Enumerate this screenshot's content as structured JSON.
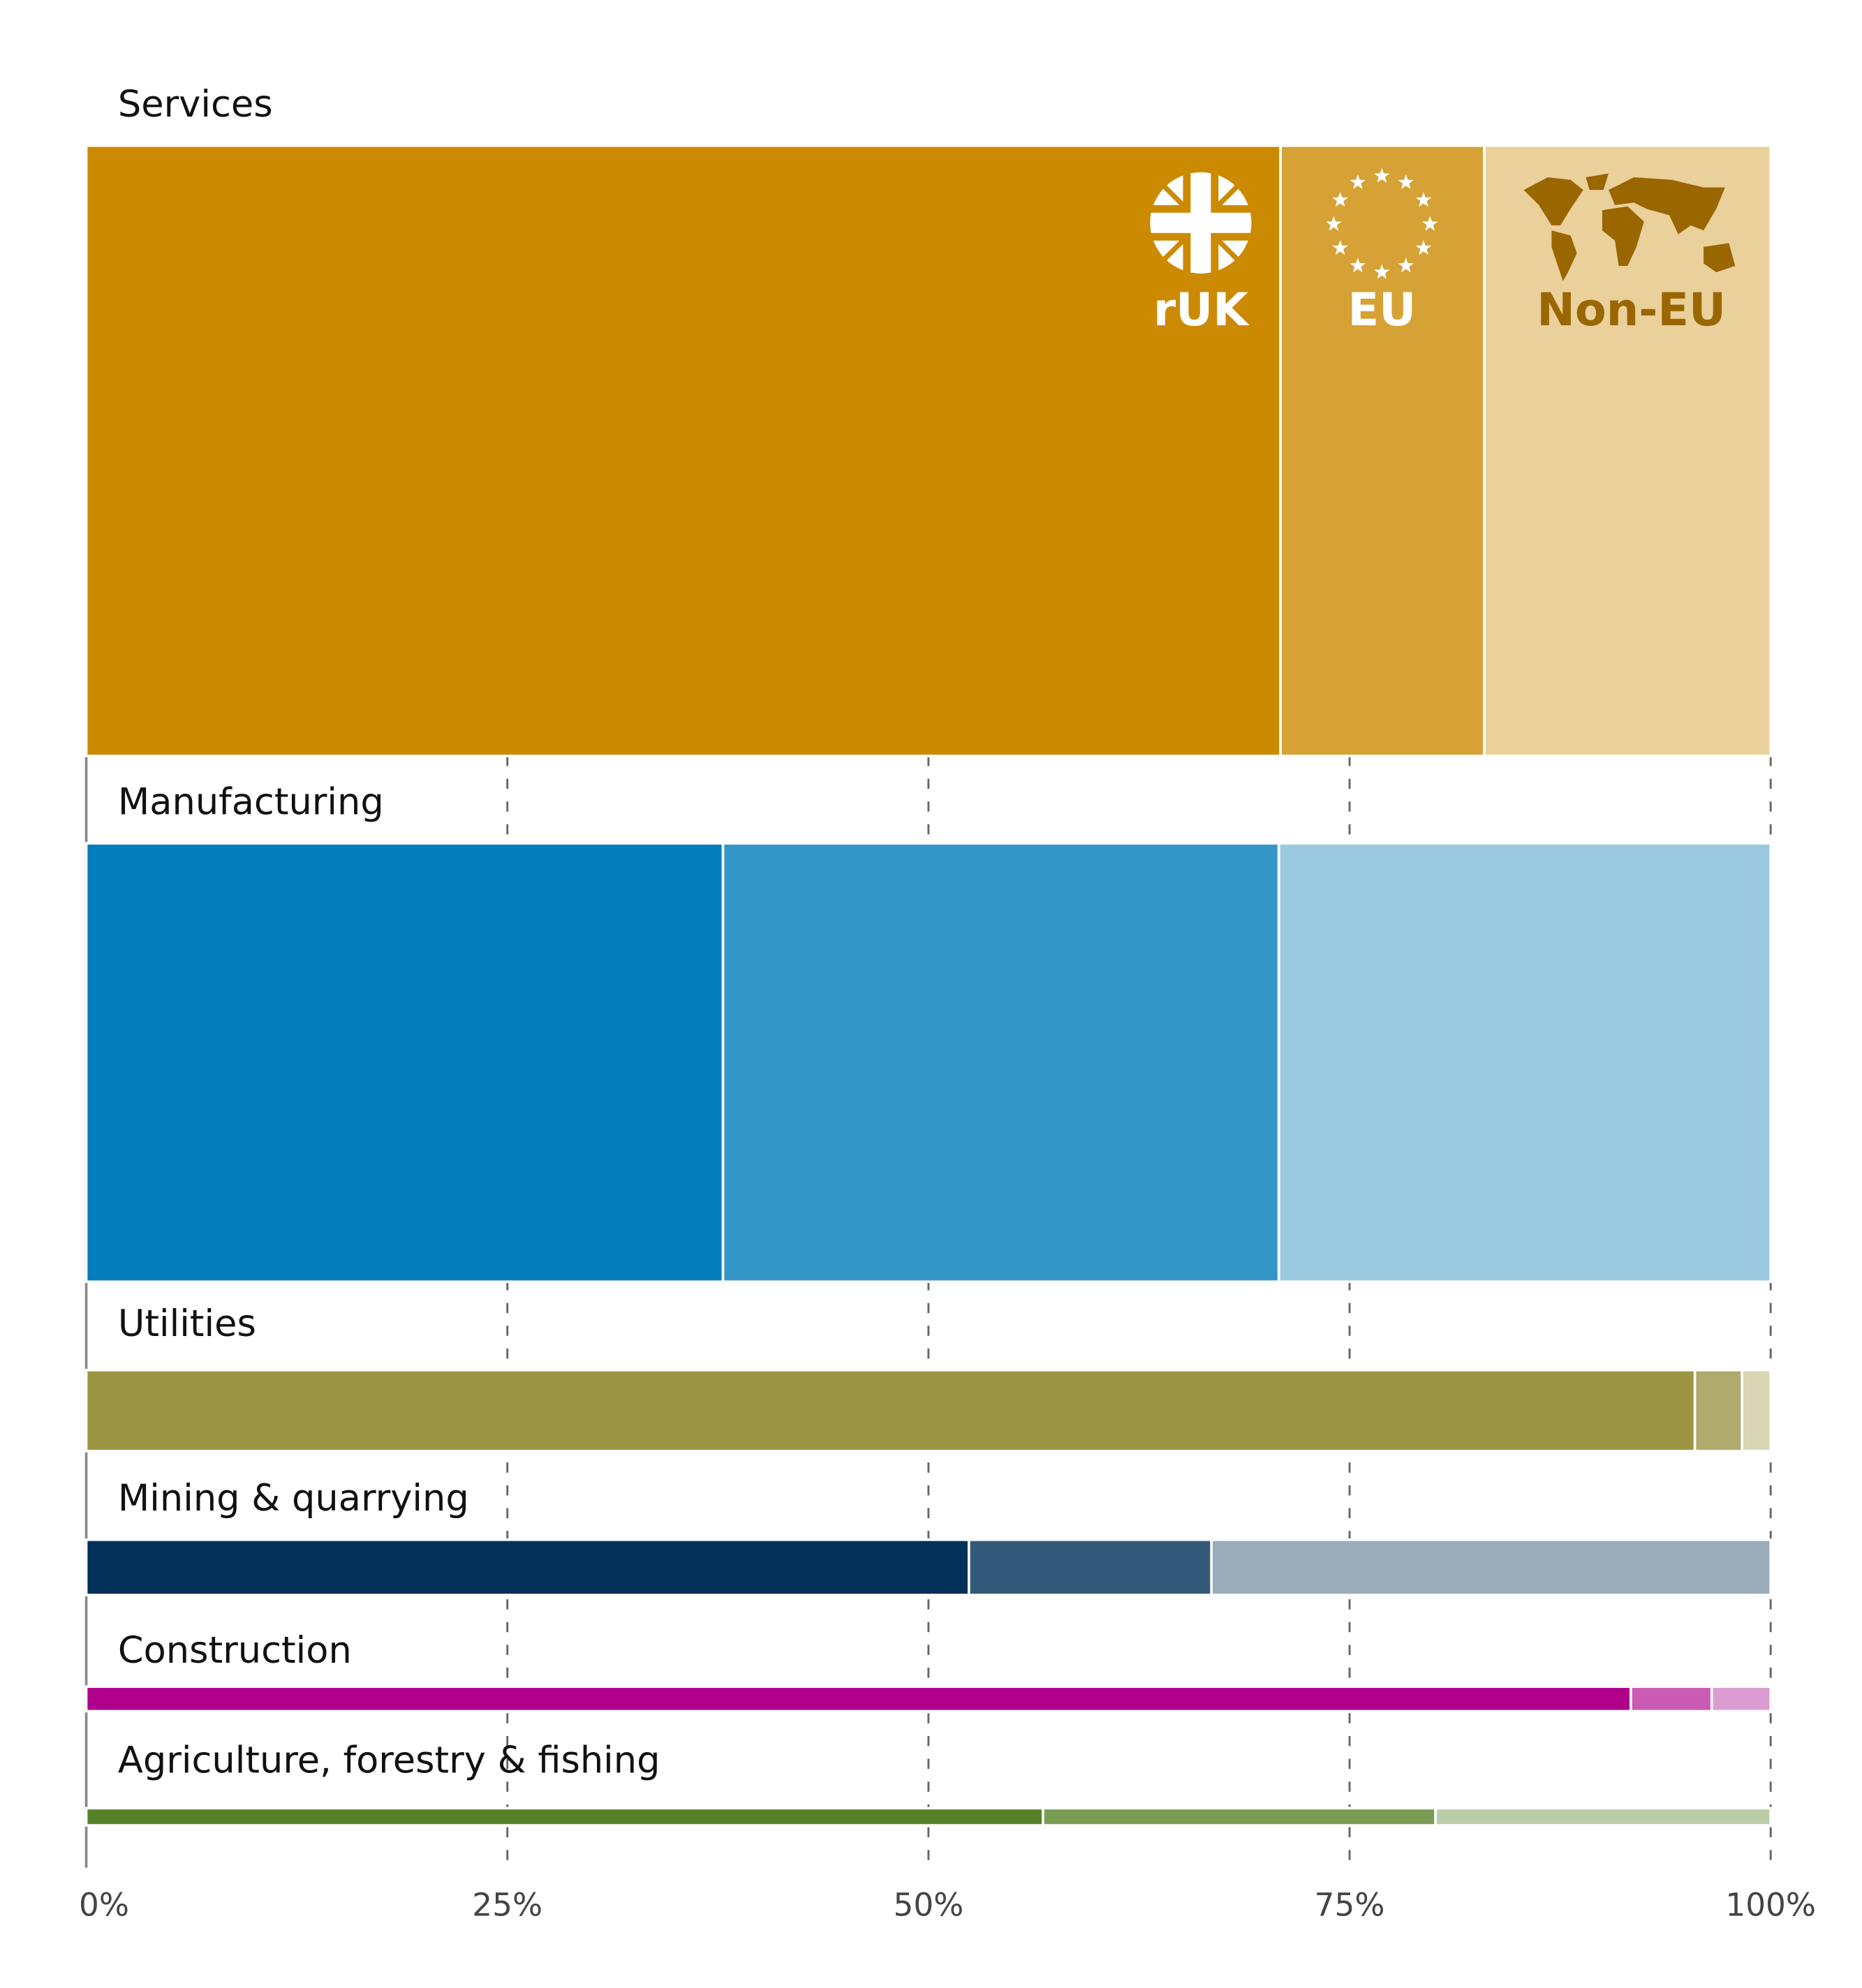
{
  "chart_data": {
    "type": "bar",
    "subtype": "marimekko-stacked-100-percent",
    "orientation": "horizontal",
    "segments": [
      {
        "name": "rUK",
        "icon": "union-jack-icon"
      },
      {
        "name": "EU",
        "icon": "eu-stars-icon"
      },
      {
        "name": "Non-EU",
        "icon": "world-map-icon"
      }
    ],
    "categories": [
      {
        "label": "Services",
        "relative_size": 49.7,
        "shares": [
          70.9,
          12.1,
          17.0
        ],
        "colors": [
          "#cc8a00",
          "#d6a235",
          "#ead09b"
        ]
      },
      {
        "label": "Manufacturing",
        "relative_size": 35.7,
        "shares": [
          37.8,
          33.0,
          29.2
        ],
        "colors": [
          "#037dbb",
          "#3597c8",
          "#9bcae0"
        ]
      },
      {
        "label": "Utilities",
        "relative_size": 6.6,
        "shares": [
          95.5,
          2.8,
          1.7
        ],
        "colors": [
          "#9c9644",
          "#b0aa6c",
          "#d9d6b5"
        ]
      },
      {
        "label": "Mining & quarrying",
        "relative_size": 4.5,
        "shares": [
          52.4,
          14.4,
          33.2
        ],
        "colors": [
          "#023058",
          "#345a7a",
          "#9aabb9"
        ]
      },
      {
        "label": "Construction",
        "relative_size": 2.0,
        "shares": [
          91.7,
          4.8,
          3.5
        ],
        "colors": [
          "#b0008b",
          "#c95bb5",
          "#dd9cd1"
        ]
      },
      {
        "label": "Agriculture, forestry & fishing",
        "relative_size": 1.4,
        "shares": [
          56.8,
          23.3,
          19.9
        ],
        "colors": [
          "#568128",
          "#7a9c53",
          "#bacda7"
        ]
      }
    ],
    "x_ticks": [
      "0%",
      "25%",
      "50%",
      "75%",
      "100%"
    ],
    "xlim": [
      0,
      100
    ],
    "grid": "vertical dashed",
    "segment_label_colors": [
      "#ffffff",
      "#ffffff",
      "#9a6600"
    ]
  }
}
